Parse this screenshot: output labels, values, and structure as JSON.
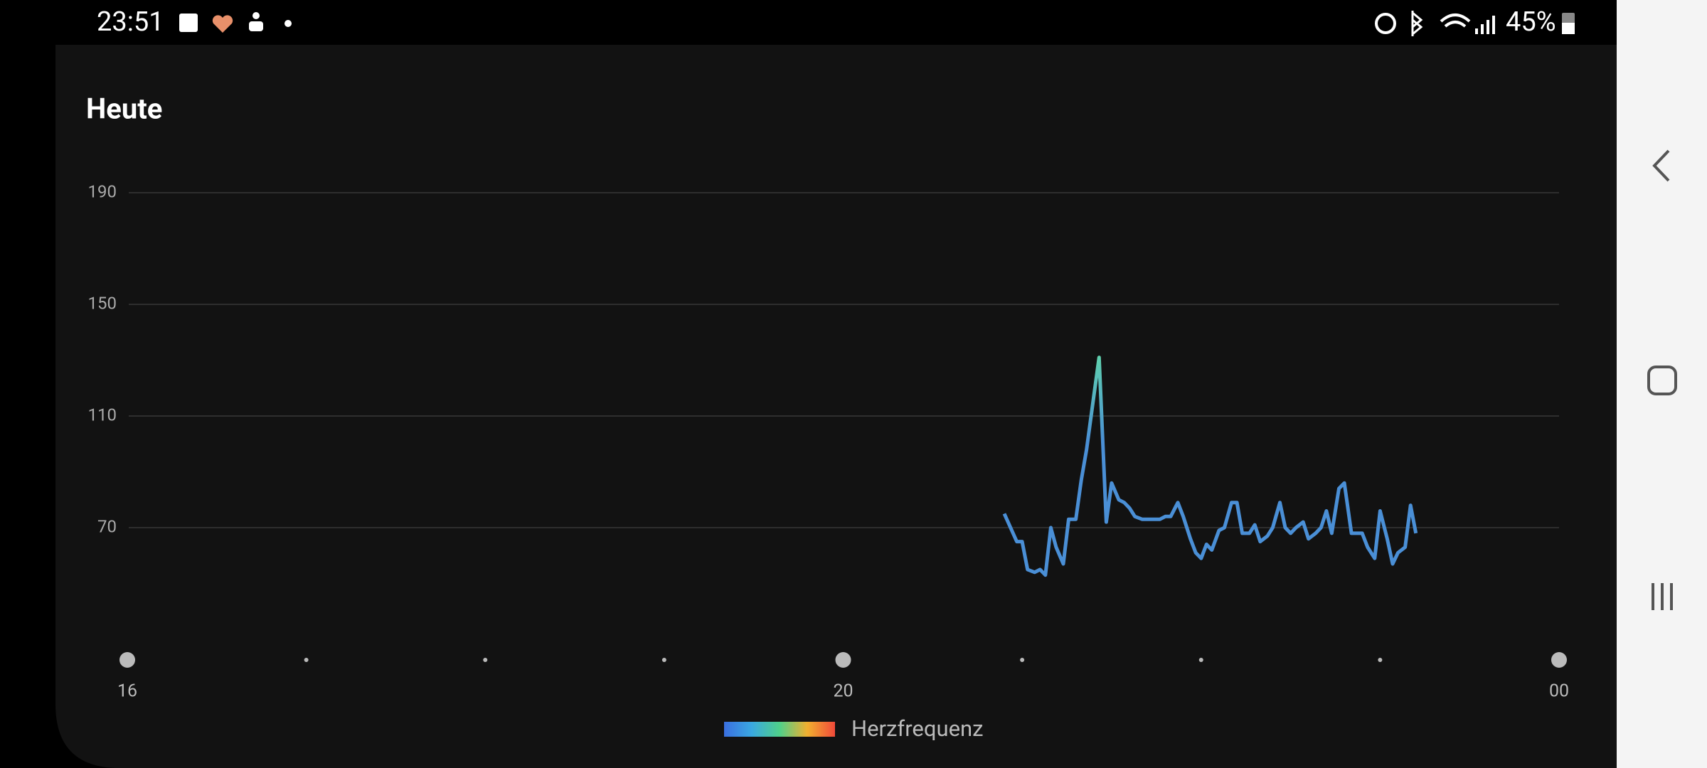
{
  "status_bar": {
    "time": "23:51",
    "battery": "45%"
  },
  "chart_data": {
    "type": "line",
    "title": "Heute",
    "series": [
      {
        "name": "Herzfrequenz",
        "color": "#4a8fd6",
        "peak_color": "#5fd0ae",
        "legend_colors": [
          "#3a6fe0",
          "#3aa8e0",
          "#4fd08a",
          "#f0b030",
          "#f04a3a"
        ],
        "x": [
          20.9,
          20.97,
          21.0,
          21.03,
          21.07,
          21.1,
          21.13,
          21.16,
          21.19,
          21.23,
          21.26,
          21.3,
          21.33,
          21.36,
          21.4,
          21.43,
          21.47,
          21.5,
          21.54,
          21.57,
          21.6,
          21.63,
          21.67,
          21.7,
          21.74,
          21.77,
          21.8,
          21.83,
          21.87,
          21.9,
          21.94,
          21.97,
          22.0,
          22.03,
          22.06,
          22.1,
          22.13,
          22.17,
          22.2,
          22.23,
          22.27,
          22.3,
          22.33,
          22.37,
          22.4,
          22.44,
          22.47,
          22.5,
          22.53,
          22.57,
          22.6,
          22.64,
          22.67,
          22.7,
          22.73,
          22.77,
          22.8,
          22.84,
          22.87,
          22.9,
          22.93,
          22.97,
          23.0,
          23.04,
          23.07,
          23.1,
          23.14,
          23.17,
          23.2
        ],
        "values": [
          75,
          65,
          65,
          55,
          54,
          55,
          53,
          70,
          63,
          57,
          73,
          73,
          87,
          98,
          117,
          131,
          72,
          86,
          80,
          79,
          77,
          74,
          73,
          73,
          73,
          73,
          74,
          74,
          79,
          74,
          66,
          61,
          59,
          64,
          62,
          69,
          70,
          79,
          79,
          68,
          68,
          71,
          65,
          67,
          70,
          79,
          70,
          68,
          70,
          72,
          66,
          68,
          70,
          76,
          68,
          84,
          86,
          68,
          68,
          68,
          63,
          59,
          76,
          66,
          57,
          61,
          63,
          78,
          68
        ]
      }
    ],
    "xlim": [
      16,
      24
    ],
    "xticks": [
      16,
      20,
      {
        "value": 24,
        "label": "00"
      }
    ],
    "xminor_ticks": [
      17,
      18,
      19,
      21,
      22,
      23
    ],
    "ylim": [
      30,
      190
    ],
    "yticks": [
      70,
      110,
      150,
      190
    ],
    "grid": true
  }
}
